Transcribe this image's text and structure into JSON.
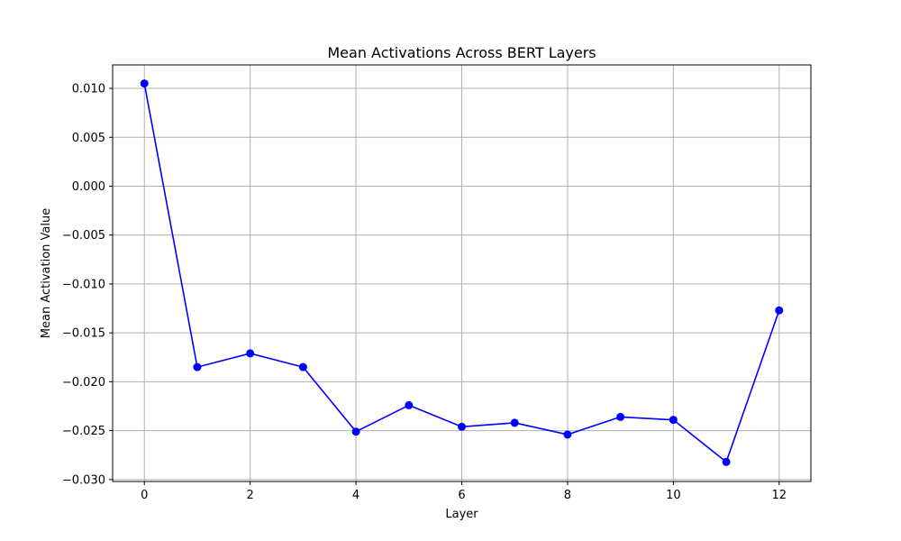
{
  "chart_data": {
    "type": "line",
    "title": "Mean Activations Across BERT Layers",
    "xlabel": "Layer",
    "ylabel": "Mean Activation Value",
    "xlim": [
      -0.6,
      12.6
    ],
    "ylim": [
      -0.0302,
      0.0124
    ],
    "xticks": [
      0,
      2,
      4,
      6,
      8,
      10,
      12
    ],
    "xtick_labels": [
      "0",
      "2",
      "4",
      "6",
      "8",
      "10",
      "12"
    ],
    "yticks": [
      0.01,
      0.005,
      0.0,
      -0.005,
      -0.01,
      -0.015,
      -0.02,
      -0.025,
      -0.03
    ],
    "ytick_labels": [
      "0.010",
      "0.005",
      "0.000",
      "−0.005",
      "−0.010",
      "−0.015",
      "−0.020",
      "−0.025",
      "−0.030"
    ],
    "grid": true,
    "series": [
      {
        "color": "#0000ff",
        "marker": "circle",
        "x": [
          0,
          1,
          2,
          3,
          4,
          5,
          6,
          7,
          8,
          9,
          10,
          11,
          12
        ],
        "y": [
          0.0105,
          -0.0185,
          -0.0171,
          -0.0185,
          -0.0251,
          -0.0224,
          -0.0246,
          -0.0242,
          -0.0254,
          -0.0236,
          -0.0239,
          -0.0282,
          -0.0127
        ]
      }
    ]
  }
}
